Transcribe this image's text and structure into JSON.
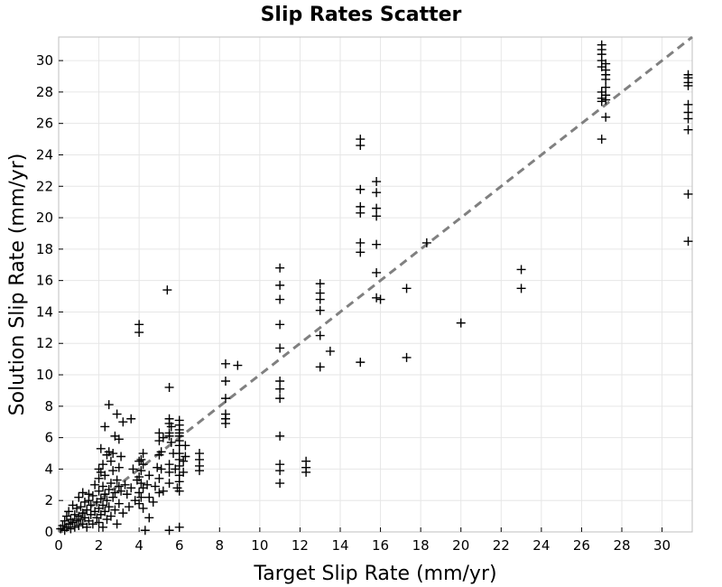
{
  "chart_data": {
    "type": "scatter",
    "title": "Slip Rates Scatter",
    "xlabel": "Target Slip Rate (mm/yr)",
    "ylabel": "Solution Slip Rate (mm/yr)",
    "xlim": [
      0,
      31.5
    ],
    "ylim": [
      0,
      31.5
    ],
    "xticks": [
      0,
      2,
      4,
      6,
      8,
      10,
      12,
      14,
      16,
      18,
      20,
      22,
      24,
      26,
      28,
      30
    ],
    "yticks": [
      0,
      2,
      4,
      6,
      8,
      10,
      12,
      14,
      16,
      18,
      20,
      22,
      24,
      26,
      28,
      30
    ],
    "grid": true,
    "marker": "plus",
    "marker_color": "#000000",
    "reference_line": {
      "style": "dashed",
      "color": "#808080",
      "from": [
        0,
        0
      ],
      "to": [
        31.5,
        31.5
      ]
    },
    "points": [
      [
        0.1,
        0.2
      ],
      [
        0.2,
        0.4
      ],
      [
        0.3,
        0.1
      ],
      [
        0.3,
        0.7
      ],
      [
        0.4,
        0.3
      ],
      [
        0.4,
        1.0
      ],
      [
        0.5,
        0.5
      ],
      [
        0.5,
        1.3
      ],
      [
        0.6,
        0.2
      ],
      [
        0.6,
        0.8
      ],
      [
        0.7,
        0.6
      ],
      [
        0.7,
        1.7
      ],
      [
        0.8,
        0.3
      ],
      [
        0.8,
        1.1
      ],
      [
        0.9,
        0.7
      ],
      [
        0.9,
        1.5
      ],
      [
        1.0,
        0.4
      ],
      [
        1.0,
        1.0
      ],
      [
        1.0,
        2.2
      ],
      [
        1.1,
        0.8
      ],
      [
        1.1,
        1.6
      ],
      [
        1.2,
        0.5
      ],
      [
        1.2,
        1.2
      ],
      [
        1.2,
        2.5
      ],
      [
        1.3,
        0.9
      ],
      [
        1.3,
        1.9
      ],
      [
        1.4,
        0.3
      ],
      [
        1.4,
        1.4
      ],
      [
        1.5,
        0.7
      ],
      [
        1.5,
        2.0
      ],
      [
        1.5,
        2.4
      ],
      [
        1.6,
        1.1
      ],
      [
        1.6,
        1.7
      ],
      [
        1.7,
        0.5
      ],
      [
        1.7,
        2.3
      ],
      [
        1.8,
        1.3
      ],
      [
        1.8,
        3.0
      ],
      [
        1.9,
        0.9
      ],
      [
        1.9,
        1.9
      ],
      [
        2.0,
        0.6
      ],
      [
        2.0,
        1.5
      ],
      [
        2.0,
        2.6
      ],
      [
        2.0,
        3.4
      ],
      [
        2.0,
        4.0
      ],
      [
        2.1,
        1.1
      ],
      [
        2.1,
        2.1
      ],
      [
        2.1,
        3.8
      ],
      [
        2.1,
        5.3
      ],
      [
        2.2,
        0.3
      ],
      [
        2.2,
        1.7
      ],
      [
        2.2,
        2.9
      ],
      [
        2.2,
        4.3
      ],
      [
        2.3,
        1.3
      ],
      [
        2.3,
        2.4
      ],
      [
        2.3,
        3.6
      ],
      [
        2.3,
        6.7
      ],
      [
        2.4,
        0.8
      ],
      [
        2.4,
        2.0
      ],
      [
        2.4,
        4.9
      ],
      [
        2.5,
        1.6
      ],
      [
        2.5,
        2.7
      ],
      [
        2.5,
        5.1
      ],
      [
        2.5,
        8.1
      ],
      [
        2.6,
        1.0
      ],
      [
        2.6,
        3.1
      ],
      [
        2.6,
        4.5
      ],
      [
        2.7,
        2.2
      ],
      [
        2.7,
        3.9
      ],
      [
        2.7,
        5.0
      ],
      [
        2.8,
        1.4
      ],
      [
        2.8,
        2.5
      ],
      [
        2.8,
        6.1
      ],
      [
        2.9,
        0.5
      ],
      [
        2.9,
        3.3
      ],
      [
        2.9,
        7.5
      ],
      [
        3.0,
        1.8
      ],
      [
        3.0,
        2.9
      ],
      [
        3.0,
        4.1
      ],
      [
        3.0,
        5.9
      ],
      [
        3.1,
        2.6
      ],
      [
        3.1,
        4.8
      ],
      [
        3.2,
        1.2
      ],
      [
        3.2,
        7.0
      ],
      [
        3.3,
        3.0
      ],
      [
        3.4,
        2.4
      ],
      [
        3.5,
        1.6
      ],
      [
        3.6,
        2.8
      ],
      [
        3.6,
        7.2
      ],
      [
        3.7,
        4.0
      ],
      [
        3.8,
        2.0
      ],
      [
        3.9,
        3.3
      ],
      [
        4.0,
        1.8
      ],
      [
        4.0,
        2.5
      ],
      [
        4.0,
        3.5
      ],
      [
        4.0,
        4.5
      ],
      [
        4.0,
        13.2
      ],
      [
        4.0,
        12.7
      ],
      [
        4.1,
        2.2
      ],
      [
        4.1,
        3.1
      ],
      [
        4.1,
        3.9
      ],
      [
        4.1,
        4.6
      ],
      [
        4.2,
        1.5
      ],
      [
        4.2,
        2.8
      ],
      [
        4.2,
        4.3
      ],
      [
        4.2,
        5.0
      ],
      [
        4.3,
        0.1
      ],
      [
        4.4,
        3.0
      ],
      [
        4.5,
        2.2
      ],
      [
        4.5,
        3.6
      ],
      [
        4.5,
        0.9
      ],
      [
        4.7,
        1.9
      ],
      [
        4.8,
        2.9
      ],
      [
        4.9,
        4.1
      ],
      [
        5.0,
        2.5
      ],
      [
        5.0,
        3.4
      ],
      [
        5.0,
        4.9
      ],
      [
        5.0,
        6.3
      ],
      [
        5.0,
        5.8
      ],
      [
        5.1,
        4.0
      ],
      [
        5.1,
        5.1
      ],
      [
        5.2,
        2.6
      ],
      [
        5.2,
        6.0
      ],
      [
        5.4,
        15.4
      ],
      [
        5.5,
        7.2
      ],
      [
        5.5,
        6.9
      ],
      [
        5.5,
        6.3
      ],
      [
        5.5,
        6.1
      ],
      [
        5.5,
        4.3
      ],
      [
        5.5,
        3.8
      ],
      [
        5.5,
        3.1
      ],
      [
        5.5,
        9.2
      ],
      [
        5.5,
        0.1
      ],
      [
        5.6,
        6.7
      ],
      [
        5.6,
        5.7
      ],
      [
        5.7,
        5.0
      ],
      [
        5.8,
        4.0
      ],
      [
        5.9,
        2.8
      ],
      [
        6.0,
        7.1
      ],
      [
        6.0,
        6.8
      ],
      [
        6.0,
        6.5
      ],
      [
        6.0,
        6.3
      ],
      [
        6.0,
        6.1
      ],
      [
        6.0,
        5.8
      ],
      [
        6.0,
        5.5
      ],
      [
        6.0,
        5.0
      ],
      [
        6.0,
        4.6
      ],
      [
        6.0,
        4.2
      ],
      [
        6.0,
        3.6
      ],
      [
        6.0,
        3.2
      ],
      [
        6.0,
        2.6
      ],
      [
        6.0,
        0.3
      ],
      [
        6.2,
        4.5
      ],
      [
        6.2,
        3.8
      ],
      [
        6.3,
        4.8
      ],
      [
        6.3,
        5.5
      ],
      [
        7.0,
        5.0
      ],
      [
        7.0,
        4.6
      ],
      [
        7.0,
        4.2
      ],
      [
        7.0,
        3.9
      ],
      [
        8.3,
        10.7
      ],
      [
        8.3,
        9.6
      ],
      [
        8.3,
        8.5
      ],
      [
        8.3,
        7.5
      ],
      [
        8.3,
        7.2
      ],
      [
        8.3,
        6.9
      ],
      [
        8.9,
        10.6
      ],
      [
        11.0,
        16.8
      ],
      [
        11.0,
        15.7
      ],
      [
        11.0,
        14.8
      ],
      [
        11.0,
        13.2
      ],
      [
        11.0,
        11.7
      ],
      [
        11.0,
        9.6
      ],
      [
        11.0,
        9.1
      ],
      [
        11.0,
        8.5
      ],
      [
        11.0,
        6.1
      ],
      [
        11.0,
        4.3
      ],
      [
        11.0,
        3.9
      ],
      [
        11.0,
        3.1
      ],
      [
        12.3,
        4.5
      ],
      [
        12.3,
        4.1
      ],
      [
        12.3,
        3.8
      ],
      [
        13.0,
        15.8
      ],
      [
        13.0,
        15.2
      ],
      [
        13.0,
        14.8
      ],
      [
        13.0,
        14.1
      ],
      [
        13.0,
        12.5
      ],
      [
        13.0,
        10.5
      ],
      [
        13.5,
        11.5
      ],
      [
        15.0,
        25.0
      ],
      [
        15.0,
        24.6
      ],
      [
        15.0,
        21.8
      ],
      [
        15.0,
        20.7
      ],
      [
        15.0,
        20.3
      ],
      [
        15.0,
        18.4
      ],
      [
        15.0,
        17.8
      ],
      [
        15.0,
        10.8
      ],
      [
        15.8,
        22.3
      ],
      [
        15.8,
        21.6
      ],
      [
        15.8,
        20.6
      ],
      [
        15.8,
        20.1
      ],
      [
        15.8,
        18.3
      ],
      [
        15.8,
        16.5
      ],
      [
        15.8,
        14.9
      ],
      [
        16.0,
        14.8
      ],
      [
        17.3,
        15.5
      ],
      [
        17.3,
        11.1
      ],
      [
        18.3,
        18.4
      ],
      [
        20.0,
        13.3
      ],
      [
        23.0,
        16.7
      ],
      [
        23.0,
        15.5
      ],
      [
        27.0,
        31.0
      ],
      [
        27.0,
        30.7
      ],
      [
        27.0,
        30.4
      ],
      [
        27.0,
        30.0
      ],
      [
        27.0,
        29.6
      ],
      [
        27.0,
        28.0
      ],
      [
        27.0,
        27.6
      ],
      [
        27.0,
        27.4
      ],
      [
        27.0,
        25.0
      ],
      [
        27.2,
        29.8
      ],
      [
        27.2,
        29.4
      ],
      [
        27.2,
        29.1
      ],
      [
        27.2,
        28.8
      ],
      [
        27.2,
        28.3
      ],
      [
        27.2,
        27.8
      ],
      [
        27.2,
        27.5
      ],
      [
        27.2,
        26.4
      ],
      [
        31.3,
        29.1
      ],
      [
        31.3,
        28.9
      ],
      [
        31.3,
        28.6
      ],
      [
        31.3,
        28.4
      ],
      [
        31.3,
        27.2
      ],
      [
        31.3,
        26.7
      ],
      [
        31.3,
        26.3
      ],
      [
        31.3,
        25.6
      ],
      [
        31.3,
        21.5
      ],
      [
        31.3,
        18.5
      ]
    ]
  }
}
